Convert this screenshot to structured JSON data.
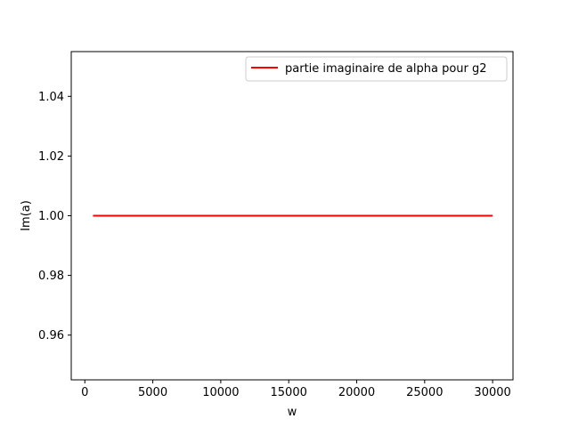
{
  "chart_data": {
    "type": "line",
    "title": "",
    "xlabel": "w",
    "ylabel": "Im(a)",
    "xlim": [
      -1000,
      31500
    ],
    "ylim": [
      0.945,
      1.055
    ],
    "xticks": [
      0,
      5000,
      10000,
      15000,
      20000,
      25000,
      30000
    ],
    "yticks": [
      0.96,
      0.98,
      1.0,
      1.02,
      1.04
    ],
    "xtick_labels": [
      "0",
      "5000",
      "10000",
      "15000",
      "20000",
      "25000",
      "30000"
    ],
    "ytick_labels": [
      "0.96",
      "0.98",
      "1.00",
      "1.02",
      "1.04"
    ],
    "grid": false,
    "legend_position": "top-right",
    "series": [
      {
        "name": "partie imaginaire de alpha pour g2",
        "color": "#ff0000",
        "x": [
          600,
          30000
        ],
        "y": [
          1.0,
          1.0
        ]
      }
    ]
  }
}
